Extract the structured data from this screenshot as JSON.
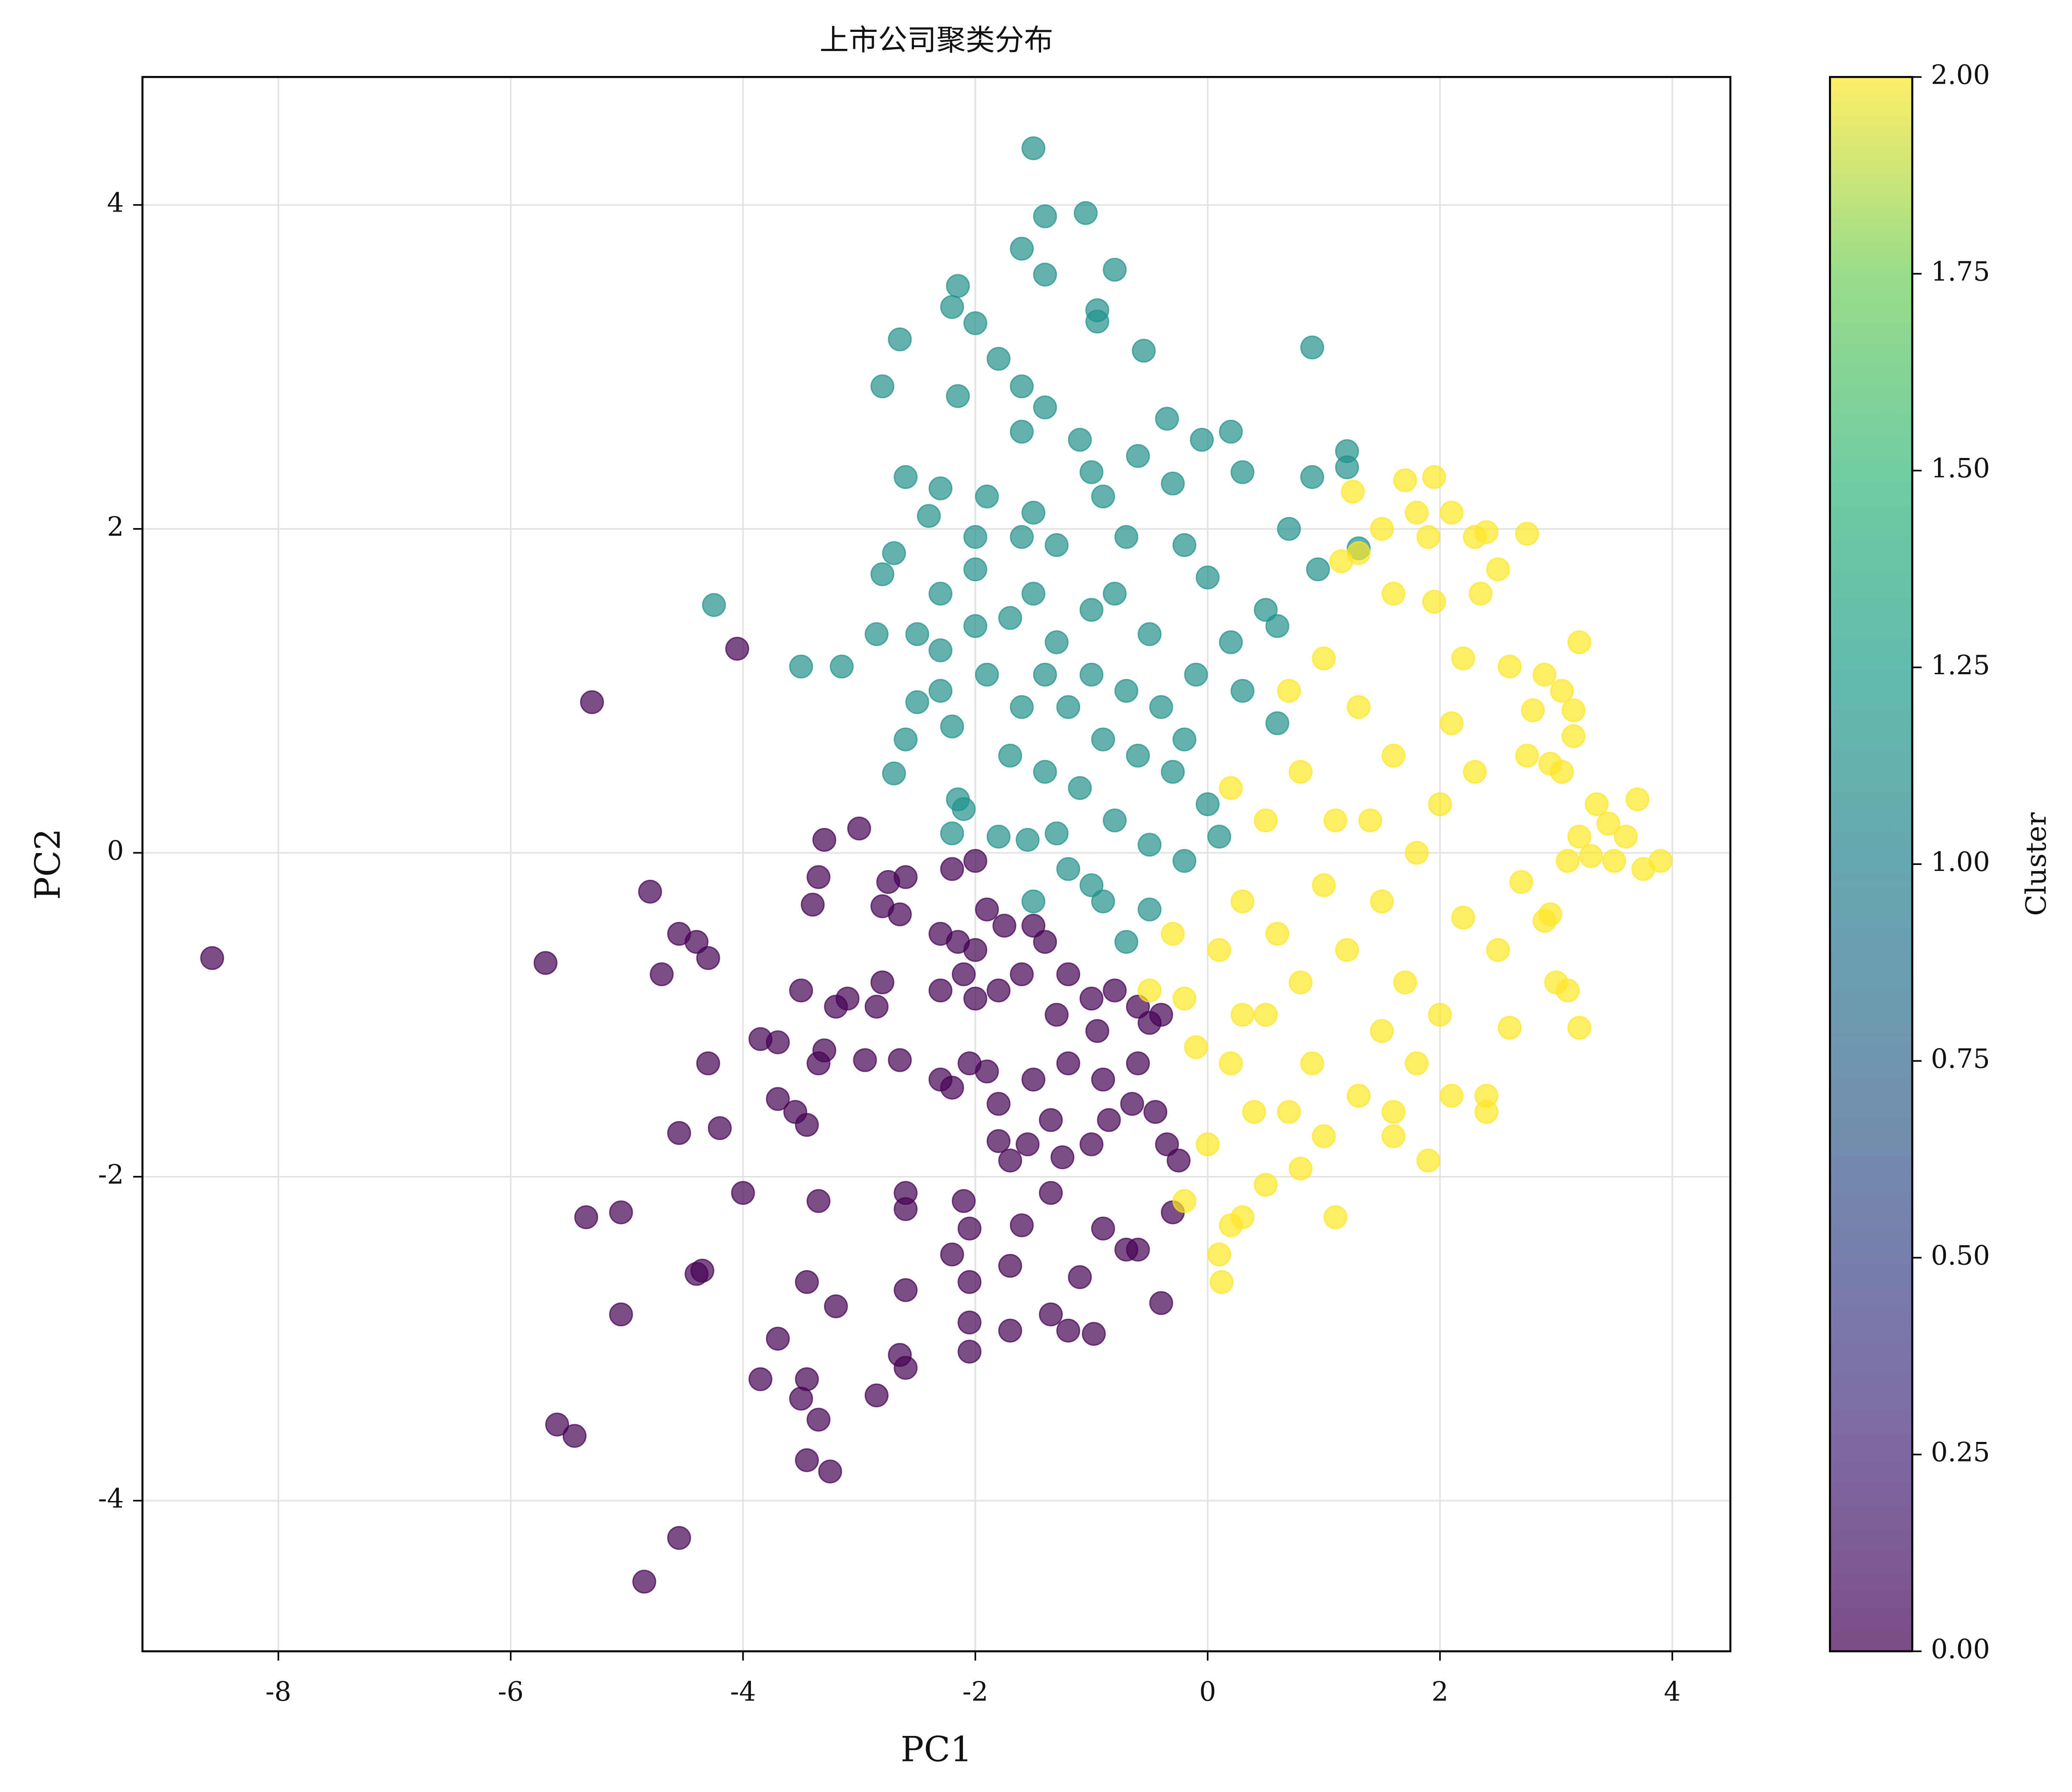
{
  "chart_data": {
    "type": "scatter",
    "title": "上市公司聚类分布",
    "xlabel": "PC1",
    "ylabel": "PC2",
    "xlim": [
      -9.17,
      4.5
    ],
    "ylim": [
      -4.93,
      4.79
    ],
    "xticks": [
      -8,
      -6,
      -4,
      -2,
      0,
      2,
      4
    ],
    "yticks": [
      -4,
      -2,
      0,
      2,
      4
    ],
    "grid": true,
    "colorbar": {
      "label": "Cluster",
      "lim": [
        0,
        2
      ],
      "ticks": [
        {
          "value": 0,
          "label": "0.00"
        },
        {
          "value": 0.25,
          "label": "0.25"
        },
        {
          "value": 0.5,
          "label": "0.50"
        },
        {
          "value": 0.75,
          "label": "0.75"
        },
        {
          "value": 1,
          "label": "1.00"
        },
        {
          "value": 1.25,
          "label": "1.25"
        },
        {
          "value": 1.5,
          "label": "1.50"
        },
        {
          "value": 1.75,
          "label": "1.75"
        },
        {
          "value": 2,
          "label": "2.00"
        }
      ]
    },
    "series": [
      {
        "color": "#440154",
        "x": [
          -8.57,
          -5.3,
          -4.05,
          -5.7,
          -4.8,
          -4.55,
          -4.4,
          -4.7,
          -4.3,
          -3.5,
          -3.4,
          -3.3,
          -3.0,
          -3.2,
          -3.1,
          -3.35,
          -2.75,
          -2.6,
          -2.8,
          -2.65,
          -2.8,
          -2.85,
          -3.85,
          -3.7,
          -3.35,
          -3.3,
          -2.95,
          -2.65,
          -4.3,
          -3.7,
          -3.55,
          -3.45,
          -4.55,
          -4.2,
          -4.0,
          -5.35,
          -5.05,
          -3.35,
          -2.6,
          -2.6,
          -4.4,
          -4.35,
          -3.45,
          -5.05,
          -3.2,
          -2.6,
          -3.7,
          -3.85,
          -3.45,
          -3.5,
          -3.35,
          -2.85,
          -2.65,
          -2.6,
          -5.6,
          -5.45,
          -3.45,
          -3.25,
          -4.55,
          -4.85,
          -2.05,
          -2.05,
          -1.7,
          -1.35,
          -1.2,
          -0.98,
          -0.4,
          -2.05,
          -1.7,
          -2.2,
          -2.1,
          -2.05,
          -1.6,
          -1.35,
          -1.1,
          -0.9,
          -0.6,
          -0.7,
          -0.3,
          -0.25,
          -1.8,
          -1.7,
          -1.55,
          -1.35,
          -1.25,
          -1.0,
          -0.85,
          -0.65,
          -0.45,
          -0.35,
          -2.3,
          -2.2,
          -2.05,
          -1.9,
          -1.8,
          -1.5,
          -1.2,
          -0.95,
          -0.6,
          -2.3,
          -2.1,
          -2.0,
          -1.8,
          -1.6,
          -1.4,
          -1.2,
          -1.0,
          -0.8,
          -0.6,
          -0.5,
          -2.3,
          -2.15,
          -2.0,
          -1.9,
          -1.75,
          -1.5,
          -2.2,
          -2.0,
          -1.3,
          -0.9,
          -0.4
        ],
        "y": [
          -0.65,
          0.93,
          1.26,
          -0.68,
          -0.24,
          -0.5,
          -0.55,
          -0.75,
          -0.65,
          -0.85,
          -0.32,
          0.08,
          0.15,
          -0.95,
          -0.9,
          -0.15,
          -0.18,
          -0.15,
          -0.33,
          -0.38,
          -0.8,
          -0.95,
          -1.15,
          -1.17,
          -1.3,
          -1.22,
          -1.28,
          -1.28,
          -1.3,
          -1.52,
          -1.6,
          -1.68,
          -1.73,
          -1.7,
          -2.1,
          -2.25,
          -2.22,
          -2.15,
          -2.1,
          -2.2,
          -2.6,
          -2.58,
          -2.65,
          -2.85,
          -2.8,
          -2.7,
          -3.0,
          -3.25,
          -3.25,
          -3.37,
          -3.5,
          -3.35,
          -3.1,
          -3.18,
          -3.53,
          -3.6,
          -3.75,
          -3.82,
          -4.23,
          -4.5,
          -3.08,
          -2.9,
          -2.95,
          -2.85,
          -2.95,
          -2.97,
          -2.78,
          -2.65,
          -2.55,
          -2.48,
          -2.15,
          -2.32,
          -2.3,
          -2.1,
          -2.62,
          -2.32,
          -2.45,
          -2.45,
          -2.22,
          -1.9,
          -1.78,
          -1.9,
          -1.8,
          -1.65,
          -1.88,
          -1.8,
          -1.65,
          -1.55,
          -1.6,
          -1.8,
          -1.4,
          -1.45,
          -1.3,
          -1.35,
          -1.55,
          -1.4,
          -1.3,
          -1.1,
          -1.3,
          -0.85,
          -0.75,
          -0.9,
          -0.85,
          -0.75,
          -0.55,
          -0.75,
          -0.9,
          -0.85,
          -0.95,
          -1.05,
          -0.5,
          -0.55,
          -0.6,
          -0.35,
          -0.45,
          -0.45,
          -0.1,
          -0.05,
          -1.0,
          -1.4,
          -1.0
        ]
      },
      {
        "color": "#21918c",
        "x": [
          -1.5,
          -1.05,
          -1.4,
          -1.6,
          -1.4,
          -0.8,
          -2.15,
          -2.2,
          -2.0,
          -0.95,
          -0.95,
          -2.65,
          -0.55,
          0.9,
          -1.8,
          -2.8,
          -1.6,
          -2.15,
          -1.4,
          -1.6,
          -0.35,
          0.2,
          -1.1,
          -0.6,
          -0.05,
          1.2,
          1.2,
          -2.6,
          -2.3,
          -1.9,
          -1.5,
          -1.0,
          -0.9,
          -0.3,
          0.3,
          0.9,
          -2.4,
          -2.0,
          -1.6,
          -1.3,
          -0.7,
          -0.2,
          0.7,
          1.3,
          -2.8,
          -2.7,
          -2.3,
          -2.0,
          -1.5,
          -0.8,
          0.0,
          0.5,
          0.95,
          -4.25,
          -3.5,
          -3.15,
          -2.85,
          -2.5,
          -2.3,
          -2.0,
          -1.7,
          -1.3,
          -1.0,
          -0.5,
          0.2,
          0.6,
          -2.5,
          -2.3,
          -2.2,
          -2.6,
          -2.7,
          -2.15,
          -2.1,
          -2.2,
          -1.8,
          -1.55,
          -1.3,
          -1.7,
          -1.4,
          -1.1,
          -0.8,
          -0.5,
          -0.2,
          -1.2,
          -0.9,
          -0.7,
          -0.5,
          -1.6,
          -1.2,
          -1.0,
          -0.7,
          -0.4,
          -0.1,
          0.3,
          0.6,
          -0.9,
          -0.6,
          -0.3,
          0.0,
          -1.4,
          -1.9,
          -0.2,
          0.1,
          -1.0,
          -1.5
        ],
        "y": [
          4.35,
          3.95,
          3.93,
          3.73,
          3.57,
          3.6,
          3.5,
          3.37,
          3.27,
          3.35,
          3.28,
          3.17,
          3.1,
          3.12,
          3.05,
          2.88,
          2.88,
          2.82,
          2.75,
          2.6,
          2.68,
          2.6,
          2.55,
          2.45,
          2.55,
          2.48,
          2.38,
          2.32,
          2.25,
          2.2,
          2.1,
          2.35,
          2.2,
          2.28,
          2.35,
          2.32,
          2.08,
          1.95,
          1.95,
          1.9,
          1.95,
          1.9,
          2.0,
          1.88,
          1.72,
          1.85,
          1.6,
          1.75,
          1.6,
          1.6,
          1.7,
          1.5,
          1.75,
          1.53,
          1.15,
          1.15,
          1.35,
          1.35,
          1.25,
          1.4,
          1.45,
          1.3,
          1.5,
          1.35,
          1.3,
          1.4,
          0.93,
          1.0,
          0.78,
          0.7,
          0.49,
          0.33,
          0.27,
          0.12,
          0.1,
          0.08,
          0.12,
          0.6,
          0.5,
          0.4,
          0.2,
          0.05,
          -0.05,
          -0.1,
          -0.3,
          -0.55,
          -0.35,
          0.9,
          0.9,
          1.1,
          1.0,
          0.9,
          1.1,
          1.0,
          0.8,
          0.7,
          0.6,
          0.5,
          0.3,
          1.1,
          1.1,
          0.7,
          0.1,
          -0.2,
          -0.3
        ]
      },
      {
        "color": "#fde725",
        "x": [
          1.25,
          1.7,
          1.95,
          1.8,
          2.1,
          2.3,
          2.4,
          2.75,
          1.5,
          1.9,
          1.15,
          1.3,
          1.6,
          1.95,
          2.35,
          2.5,
          3.2,
          2.6,
          2.9,
          3.05,
          3.15,
          2.8,
          3.15,
          2.95,
          2.75,
          3.05,
          3.35,
          3.7,
          3.45,
          3.6,
          3.2,
          3.5,
          3.9,
          3.75,
          3.3,
          3.1,
          2.9,
          2.95,
          2.7,
          2.5,
          3.0,
          3.1,
          3.2,
          2.6,
          2.4,
          2.4,
          2.1,
          1.8,
          1.6,
          1.3,
          1.0,
          0.8,
          0.5,
          1.1,
          0.3,
          0.2,
          0.1,
          0.12,
          -0.2,
          0.0,
          0.2,
          0.5,
          0.8,
          1.2,
          1.5,
          1.8,
          2.0,
          1.6,
          1.3,
          1.0,
          0.8,
          0.5,
          0.3,
          0.1,
          -0.2,
          -0.5,
          -0.3,
          0.6,
          1.0,
          1.4,
          1.7,
          2.2,
          2.3,
          2.1,
          2.2,
          0.9,
          1.5,
          0.2,
          0.7,
          1.9,
          1.6,
          0.4,
          2.0,
          1.1,
          0.3,
          -0.1,
          0.7
        ],
        "y": [
          2.23,
          2.3,
          2.32,
          2.1,
          2.1,
          1.95,
          1.98,
          1.97,
          2.0,
          1.95,
          1.8,
          1.85,
          1.6,
          1.55,
          1.6,
          1.75,
          1.3,
          1.15,
          1.1,
          1.0,
          0.88,
          0.88,
          0.72,
          0.55,
          0.6,
          0.5,
          0.3,
          0.33,
          0.18,
          0.1,
          0.1,
          -0.05,
          -0.05,
          -0.1,
          -0.02,
          -0.05,
          -0.42,
          -0.38,
          -0.18,
          -0.6,
          -0.8,
          -0.85,
          -1.08,
          -1.08,
          -1.5,
          -1.6,
          -1.5,
          -1.3,
          -1.6,
          -1.5,
          -1.75,
          -1.95,
          -2.05,
          -2.25,
          -2.25,
          -2.3,
          -2.48,
          -2.65,
          -2.15,
          -1.8,
          -1.3,
          -1.0,
          -0.8,
          -0.6,
          -0.3,
          0.0,
          0.3,
          0.6,
          0.9,
          1.2,
          0.5,
          0.2,
          -0.3,
          -0.6,
          -0.9,
          -0.85,
          -0.5,
          -0.5,
          -0.2,
          0.2,
          -0.8,
          -0.4,
          0.5,
          0.8,
          1.2,
          -1.3,
          -1.1,
          0.4,
          1.0,
          -1.9,
          -1.75,
          -1.6,
          -1.0,
          0.2,
          -1.0,
          -1.2,
          -1.6
        ]
      }
    ]
  }
}
